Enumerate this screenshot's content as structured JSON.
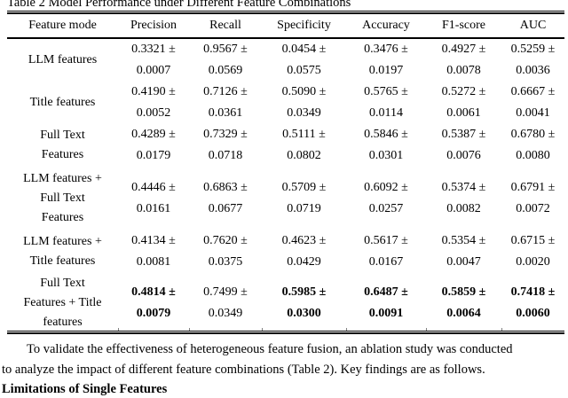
{
  "title": "Table 2 Model Performance under Different Feature Combinations",
  "table": {
    "headers": [
      "Feature mode",
      "Precision",
      "Recall",
      "Specificity",
      "Accuracy",
      "F1-score",
      "AUC"
    ],
    "rows": [
      {
        "feature_mode_lines": [
          "LLM features"
        ],
        "metrics": [
          {
            "mean": "0.3321 ±",
            "std": "0.0007",
            "bold": false
          },
          {
            "mean": "0.9567 ±",
            "std": "0.0569",
            "bold": false
          },
          {
            "mean": "0.0454 ±",
            "std": "0.0575",
            "bold": false
          },
          {
            "mean": "0.3476 ±",
            "std": "0.0197",
            "bold": false
          },
          {
            "mean": "0.4927 ±",
            "std": "0.0078",
            "bold": false
          },
          {
            "mean": "0.5259 ±",
            "std": "0.0036",
            "bold": false
          }
        ]
      },
      {
        "feature_mode_lines": [
          "Title features"
        ],
        "metrics": [
          {
            "mean": "0.4190 ±",
            "std": "0.0052",
            "bold": false
          },
          {
            "mean": "0.7126 ±",
            "std": "0.0361",
            "bold": false
          },
          {
            "mean": "0.5090 ±",
            "std": "0.0349",
            "bold": false
          },
          {
            "mean": "0.5765 ±",
            "std": "0.0114",
            "bold": false
          },
          {
            "mean": "0.5272 ±",
            "std": "0.0061",
            "bold": false
          },
          {
            "mean": "0.6667 ±",
            "std": "0.0041",
            "bold": false
          }
        ]
      },
      {
        "feature_mode_lines": [
          "Full Text",
          "Features"
        ],
        "metrics": [
          {
            "mean": "0.4289 ±",
            "std": "0.0179",
            "bold": false
          },
          {
            "mean": "0.7329 ±",
            "std": "0.0718",
            "bold": false
          },
          {
            "mean": "0.5111 ±",
            "std": "0.0802",
            "bold": false
          },
          {
            "mean": "0.5846 ±",
            "std": "0.0301",
            "bold": false
          },
          {
            "mean": "0.5387 ±",
            "std": "0.0076",
            "bold": false
          },
          {
            "mean": "0.6780 ±",
            "std": "0.0080",
            "bold": false
          }
        ]
      },
      {
        "feature_mode_lines": [
          "LLM features +",
          "Full Text",
          "Features"
        ],
        "metrics": [
          {
            "mean": "0.4446 ±",
            "std": "0.0161",
            "bold": false
          },
          {
            "mean": "0.6863 ±",
            "std": "0.0677",
            "bold": false
          },
          {
            "mean": "0.5709 ±",
            "std": "0.0719",
            "bold": false
          },
          {
            "mean": "0.6092 ±",
            "std": "0.0257",
            "bold": false
          },
          {
            "mean": "0.5374 ±",
            "std": "0.0082",
            "bold": false
          },
          {
            "mean": "0.6791 ±",
            "std": "0.0072",
            "bold": false
          }
        ]
      },
      {
        "feature_mode_lines": [
          "LLM features +",
          "Title features"
        ],
        "metrics": [
          {
            "mean": "0.4134 ±",
            "std": "0.0081",
            "bold": false
          },
          {
            "mean": "0.7620 ±",
            "std": "0.0375",
            "bold": false
          },
          {
            "mean": "0.4623 ±",
            "std": "0.0429",
            "bold": false
          },
          {
            "mean": "0.5617 ±",
            "std": "0.0167",
            "bold": false
          },
          {
            "mean": "0.5354 ±",
            "std": "0.0047",
            "bold": false
          },
          {
            "mean": "0.6715 ±",
            "std": "0.0020",
            "bold": false
          }
        ]
      },
      {
        "feature_mode_lines": [
          "Full Text",
          "Features + Title",
          "features"
        ],
        "metrics": [
          {
            "mean": "0.4814 ±",
            "std": "0.0079",
            "bold": true
          },
          {
            "mean": "0.7499 ±",
            "std": "0.0349",
            "bold": false
          },
          {
            "mean": "0.5985 ±",
            "std": "0.0300",
            "bold": true
          },
          {
            "mean": "0.6487 ±",
            "std": "0.0091",
            "bold": true
          },
          {
            "mean": "0.5859 ±",
            "std": "0.0064",
            "bold": true
          },
          {
            "mean": "0.7418 ±",
            "std": "0.0060",
            "bold": true
          }
        ]
      }
    ]
  },
  "body_text": {
    "paragraph_line1": "To validate the effectiveness of heterogeneous feature fusion, an ablation study was conducted",
    "paragraph_line2": "to analyze the impact of different feature combinations (Table 2). Key findings are as follows.",
    "heading": "Limitations of Single Features"
  },
  "colors": {
    "text": "#000000",
    "background": "#ffffff",
    "rule": "#000000"
  }
}
